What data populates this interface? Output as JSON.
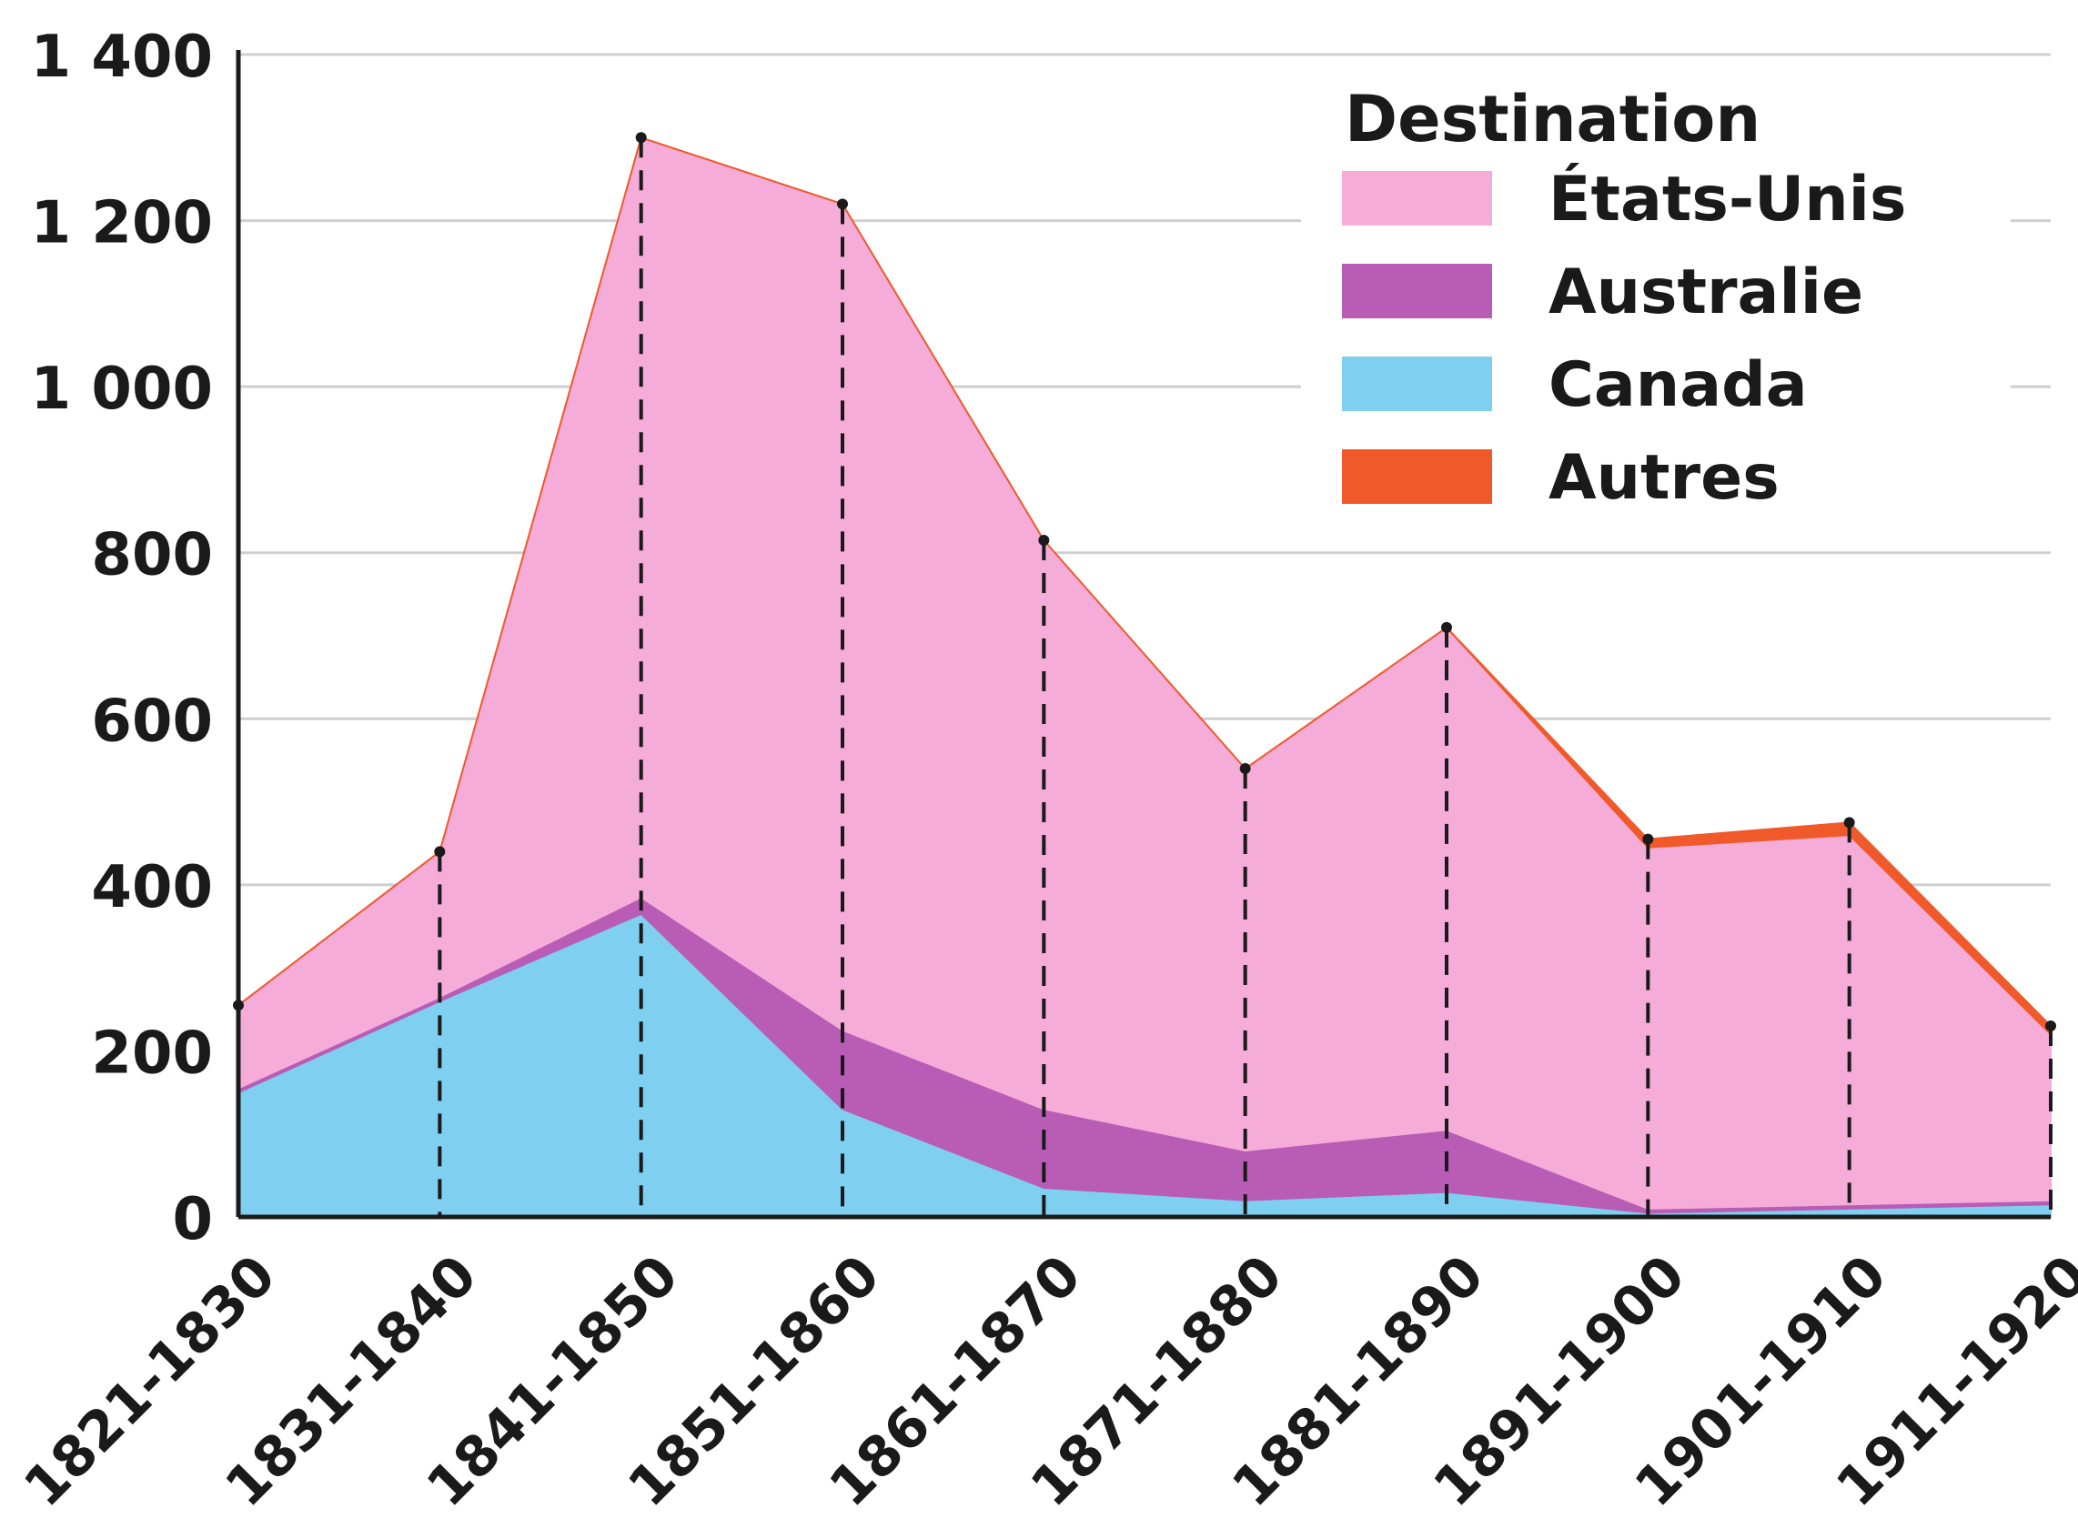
{
  "chart_data": {
    "type": "area",
    "stacked": true,
    "categories": [
      "1821-1830",
      "1831-1840",
      "1841-1850",
      "1851-1860",
      "1861-1870",
      "1871-1880",
      "1881-1890",
      "1891-1900",
      "1901-1910",
      "1911-1920"
    ],
    "series": [
      {
        "name": "Canada",
        "color": "#7fd0f0",
        "values": [
          150,
          260,
          365,
          130,
          35,
          20,
          30,
          5,
          10,
          15
        ]
      },
      {
        "name": "Australie",
        "color": "#b85cb6",
        "values": [
          5,
          5,
          20,
          95,
          95,
          60,
          75,
          5,
          5,
          5
        ]
      },
      {
        "name": "États-Unis",
        "color": "#f5acd8",
        "values": [
          100,
          175,
          915,
          995,
          685,
          460,
          605,
          435,
          445,
          200
        ]
      },
      {
        "name": "Autres",
        "color": "#f05a2a",
        "values": [
          0,
          0,
          0,
          0,
          0,
          0,
          0,
          10,
          15,
          10
        ]
      }
    ],
    "ylim": [
      0,
      1400
    ],
    "yticks": [
      0,
      200,
      400,
      600,
      800,
      1000,
      1200,
      1400
    ],
    "ytick_labels": [
      "0",
      "200",
      "400",
      "600",
      "800",
      "1 000",
      "1 200",
      "1 400"
    ],
    "grid": true,
    "legend": {
      "title": "Destination",
      "placement": "top-right",
      "entries": [
        {
          "label": "États-Unis",
          "color": "#f5acd8"
        },
        {
          "label": "Australie",
          "color": "#b85cb6"
        },
        {
          "label": "Canada",
          "color": "#7fd0f0"
        },
        {
          "label": "Autres",
          "color": "#f05a2a"
        }
      ]
    }
  }
}
